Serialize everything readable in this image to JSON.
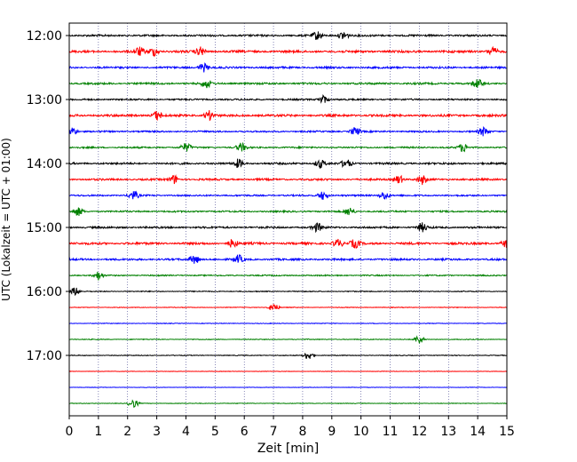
{
  "chart_data": {
    "type": "line",
    "title": "",
    "xlabel": "Zeit  [min]",
    "ylabel": "UTC (Lokalzeit = UTC + 01:00)",
    "xlim": [
      0,
      15
    ],
    "x_ticks": [
      "0",
      "1",
      "2",
      "3",
      "4",
      "5",
      "6",
      "7",
      "8",
      "9",
      "10",
      "11",
      "12",
      "13",
      "14",
      "15"
    ],
    "y_ticks": [
      "12:00",
      "13:00",
      "14:00",
      "15:00",
      "16:00",
      "17:00"
    ],
    "grid": "vertical dotted at each minute",
    "line_colors": [
      "#000000",
      "#ff0000",
      "#0000ff",
      "#008000"
    ],
    "traces": [
      {
        "start": "12:00",
        "color": "#000000",
        "amplitude": 0.6,
        "events": [
          8.5,
          9.4
        ]
      },
      {
        "start": "12:15",
        "color": "#ff0000",
        "amplitude": 0.7,
        "events": [
          2.4,
          2.9,
          4.5,
          14.5
        ]
      },
      {
        "start": "12:30",
        "color": "#0000ff",
        "amplitude": 0.6,
        "events": [
          4.6
        ]
      },
      {
        "start": "12:45",
        "color": "#008000",
        "amplitude": 0.6,
        "events": [
          4.7,
          14.0
        ]
      },
      {
        "start": "13:00",
        "color": "#000000",
        "amplitude": 0.5,
        "events": [
          8.7
        ]
      },
      {
        "start": "13:15",
        "color": "#ff0000",
        "amplitude": 0.7,
        "events": [
          3.0,
          4.8
        ]
      },
      {
        "start": "13:30",
        "color": "#0000ff",
        "amplitude": 0.5,
        "events": [
          0.1,
          9.8,
          14.2
        ]
      },
      {
        "start": "13:45",
        "color": "#008000",
        "amplitude": 0.5,
        "events": [
          4.0,
          5.9,
          13.5
        ]
      },
      {
        "start": "14:00",
        "color": "#000000",
        "amplitude": 0.6,
        "events": [
          5.8,
          8.6,
          9.5
        ]
      },
      {
        "start": "14:15",
        "color": "#ff0000",
        "amplitude": 0.6,
        "events": [
          3.6,
          11.3,
          12.1
        ]
      },
      {
        "start": "14:30",
        "color": "#0000ff",
        "amplitude": 0.5,
        "events": [
          2.2,
          8.7,
          10.8
        ]
      },
      {
        "start": "14:45",
        "color": "#008000",
        "amplitude": 0.5,
        "events": [
          0.3,
          9.6
        ]
      },
      {
        "start": "15:00",
        "color": "#000000",
        "amplitude": 0.6,
        "events": [
          8.5,
          12.1
        ]
      },
      {
        "start": "15:15",
        "color": "#ff0000",
        "amplitude": 0.7,
        "events": [
          5.6,
          9.2,
          9.8,
          15.0
        ]
      },
      {
        "start": "15:30",
        "color": "#0000ff",
        "amplitude": 0.6,
        "events": [
          4.3,
          5.8
        ]
      },
      {
        "start": "15:45",
        "color": "#008000",
        "amplitude": 0.4,
        "events": [
          1.0
        ]
      },
      {
        "start": "16:00",
        "color": "#000000",
        "amplitude": 0.3,
        "events": [
          0.2
        ]
      },
      {
        "start": "16:15",
        "color": "#ff0000",
        "amplitude": 0.2,
        "events": [
          7.0
        ]
      },
      {
        "start": "16:30",
        "color": "#0000ff",
        "amplitude": 0.2,
        "events": []
      },
      {
        "start": "16:45",
        "color": "#008000",
        "amplitude": 0.25,
        "events": [
          12.0
        ]
      },
      {
        "start": "17:00",
        "color": "#000000",
        "amplitude": 0.25,
        "events": [
          8.2
        ]
      },
      {
        "start": "17:15",
        "color": "#ff0000",
        "amplitude": 0.15,
        "events": []
      },
      {
        "start": "17:30",
        "color": "#0000ff",
        "amplitude": 0.15,
        "events": []
      },
      {
        "start": "17:45",
        "color": "#008000",
        "amplitude": 0.2,
        "events": [
          2.2
        ]
      }
    ]
  }
}
